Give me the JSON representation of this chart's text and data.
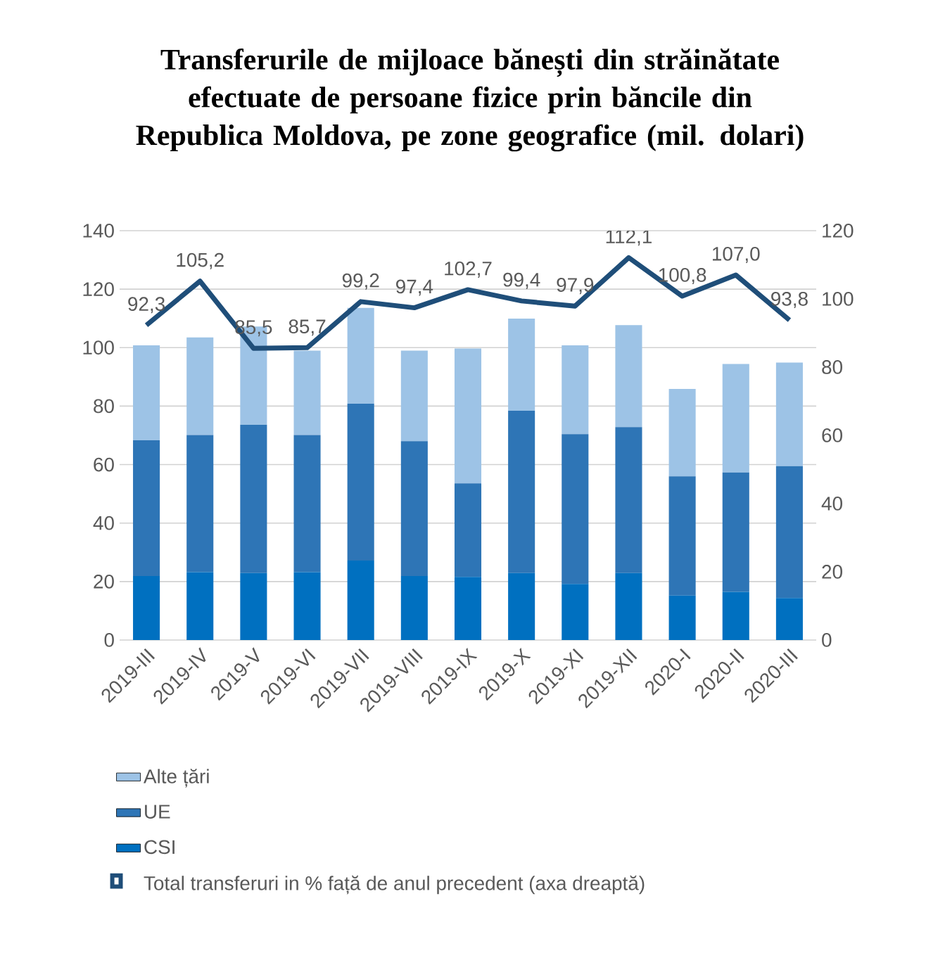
{
  "chart_data": {
    "type": "bar",
    "stacked": true,
    "title": "Transferurile de mijloace bănești din străinătate efectuate de persoane fizice prin băncile din Republica Moldova, pe zone geografice (mil. dolari)",
    "categories": [
      "2019-III",
      "2019-IV",
      "2019-V",
      "2019-VI",
      "2019-VII",
      "2019-VIII",
      "2019-IX",
      "2019-X",
      "2019-XI",
      "2019-XII",
      "2020-I",
      "2020-II",
      "2020-III"
    ],
    "series": [
      {
        "name": "CSI",
        "color": "#0070c0",
        "values": [
          21.9,
          23.2,
          22.9,
          23.2,
          27.2,
          21.9,
          21.6,
          22.9,
          19.2,
          22.9,
          15.2,
          16.5,
          14.4
        ]
      },
      {
        "name": "UE",
        "color": "#2e75b6",
        "values": [
          46.4,
          46.9,
          50.7,
          46.9,
          53.6,
          46.1,
          32.0,
          55.5,
          51.2,
          49.9,
          40.8,
          40.8,
          45.1
        ]
      },
      {
        "name": "Alte țări",
        "color": "#9dc3e6",
        "values": [
          32.5,
          33.4,
          33.6,
          28.9,
          32.8,
          31.0,
          46.1,
          31.5,
          30.4,
          34.9,
          29.9,
          37.1,
          35.4
        ]
      },
      {
        "name": "Total transferuri in % față de anul precedent (axa dreaptă)",
        "type": "line",
        "axis": "y2",
        "color": "#1f4e79",
        "values": [
          92.3,
          105.2,
          85.5,
          85.7,
          99.2,
          97.4,
          102.7,
          99.4,
          97.9,
          112.1,
          100.8,
          107.0,
          93.8
        ],
        "value_labels": [
          "92,3",
          "105,2",
          "85,5",
          "85,7",
          "99,2",
          "97,4",
          "102,7",
          "99,4",
          "97,9",
          "112,1",
          "100,8",
          "107,0",
          "93,8"
        ]
      }
    ],
    "ylim": [
      0,
      140
    ],
    "yticks": [
      0,
      20,
      40,
      60,
      80,
      100,
      120,
      140
    ],
    "y2lim": [
      0,
      120
    ],
    "y2ticks": [
      0,
      20,
      40,
      60,
      80,
      100,
      120
    ],
    "grid": "y",
    "legend": "bottom",
    "marker": "none",
    "line_style": "solid"
  }
}
